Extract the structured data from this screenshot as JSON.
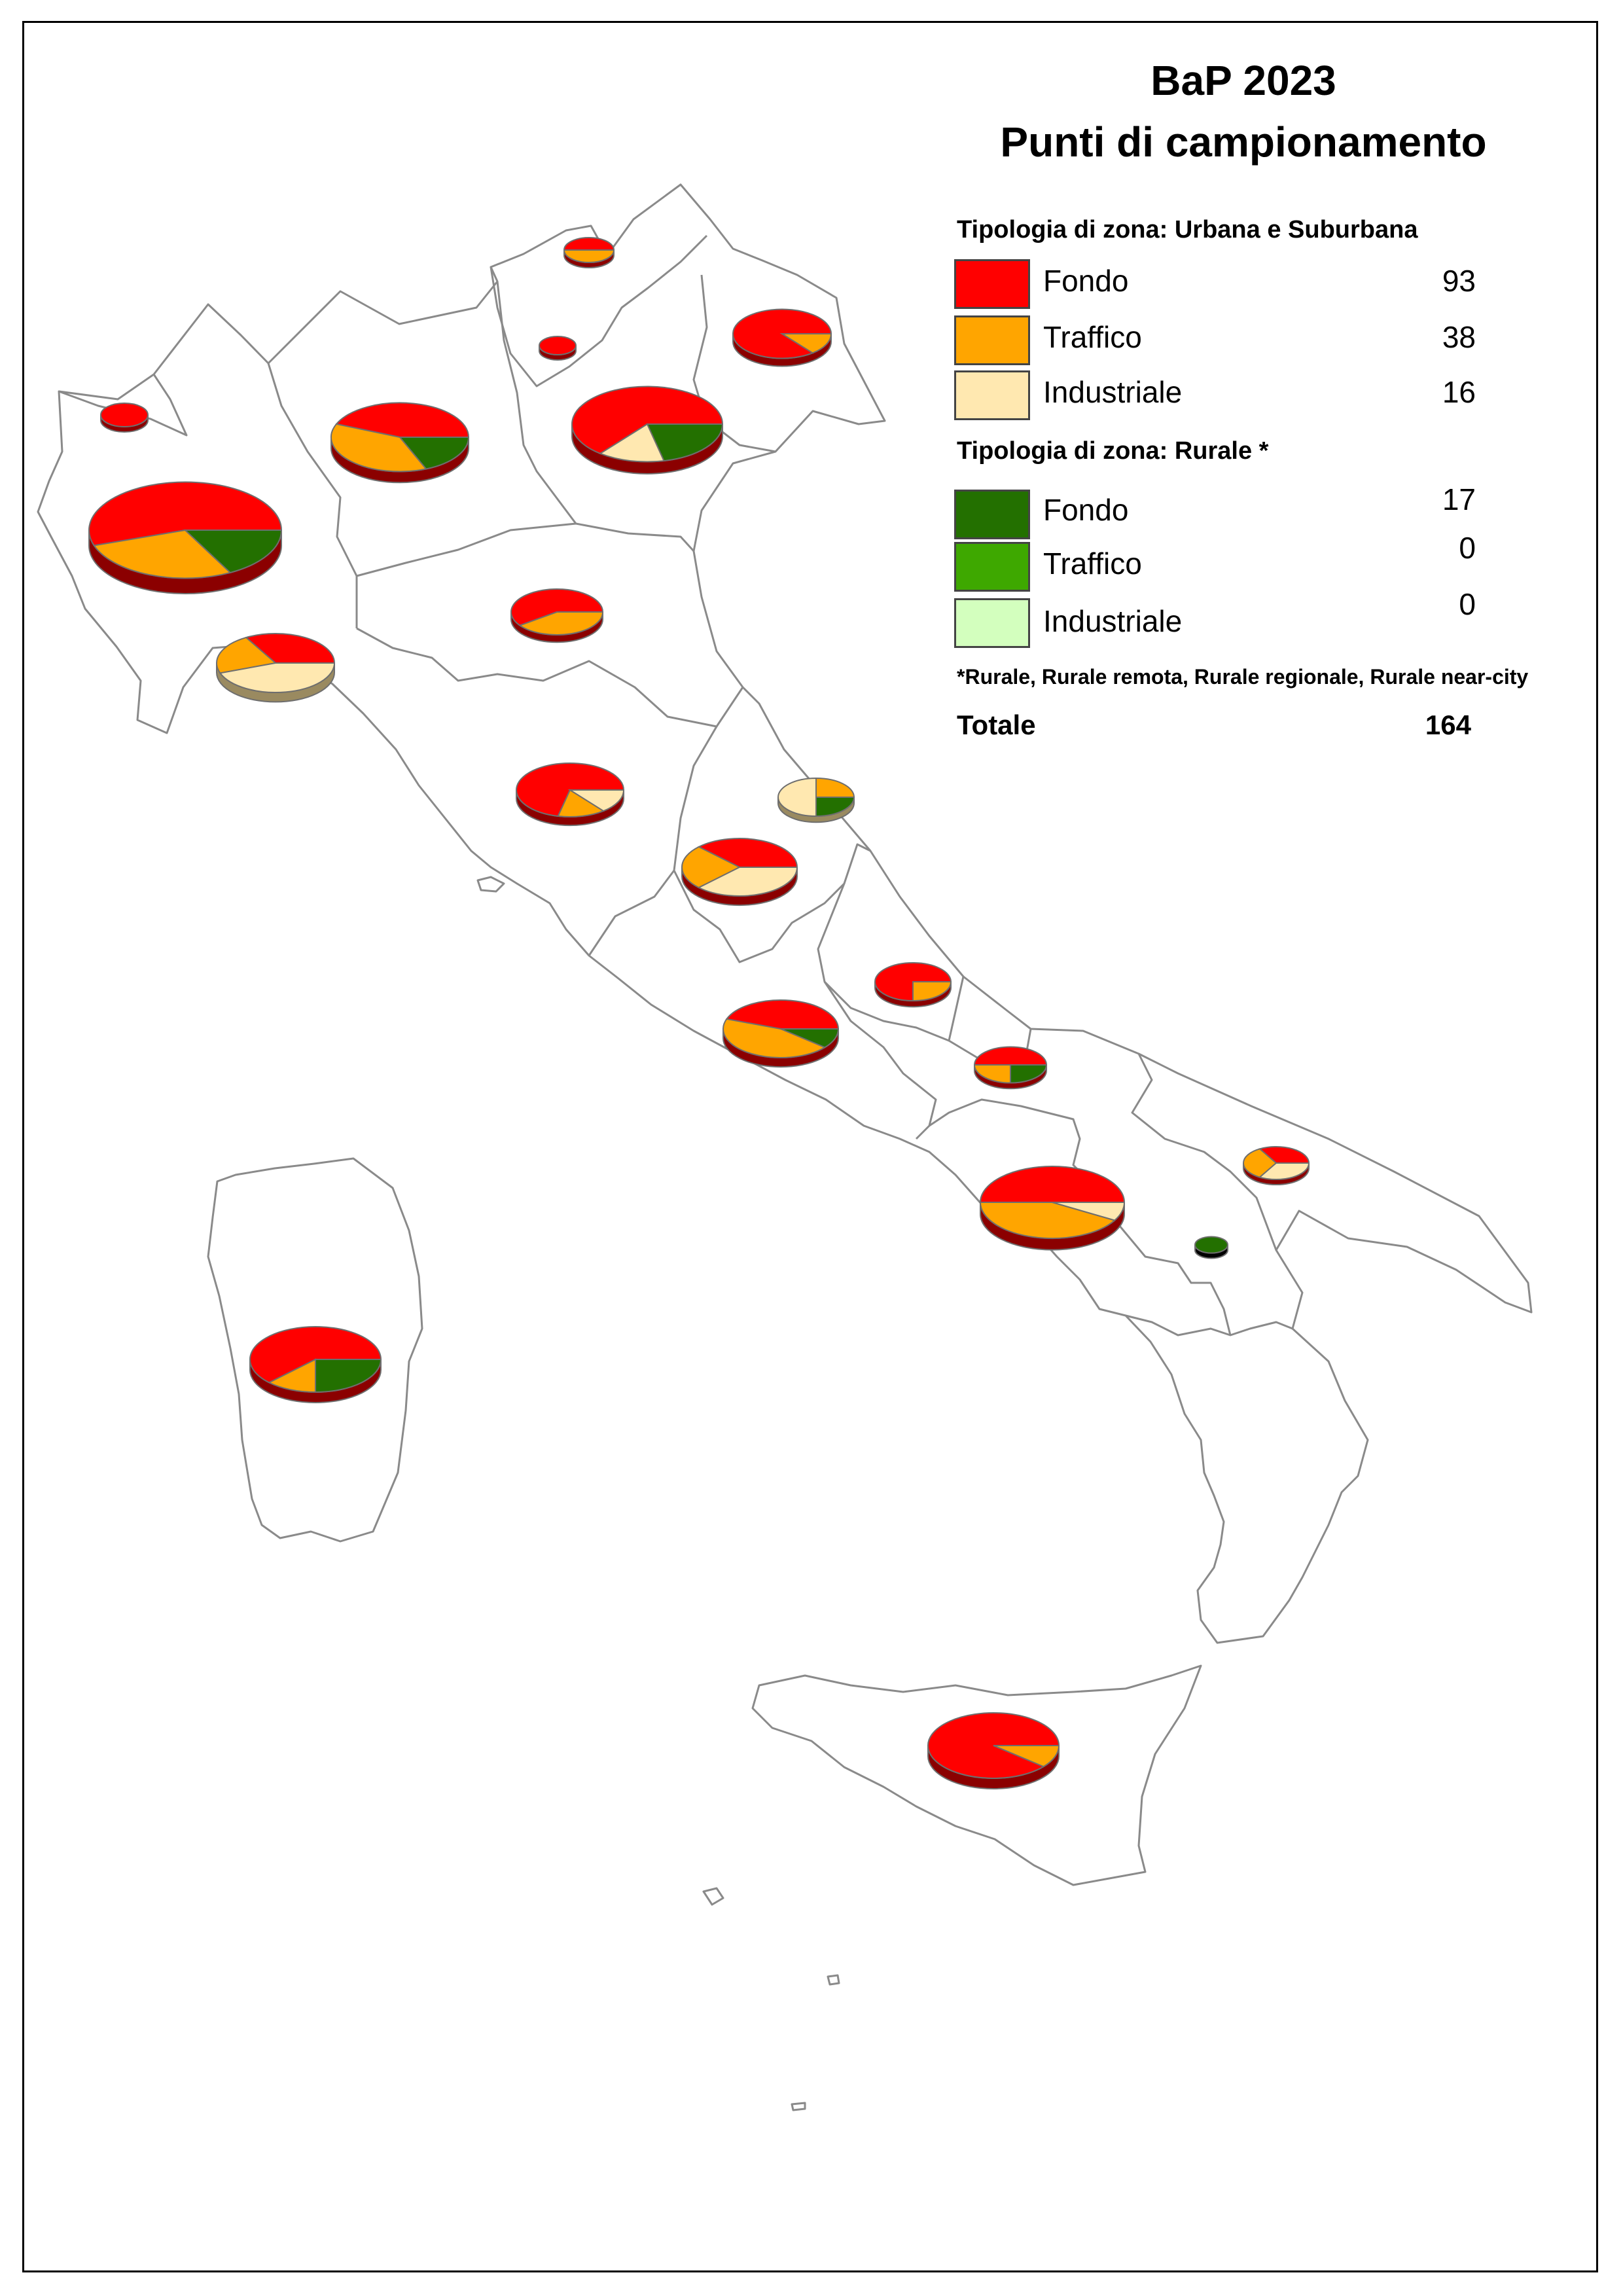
{
  "title_line1": "BaP 2023",
  "title_line2": "Punti di campionamento",
  "legend": {
    "urban_heading": "Tipologia di zona: Urbana e Suburbana",
    "urban_items": [
      {
        "label": "Fondo",
        "count": "93",
        "color": "#ff0000"
      },
      {
        "label": "Traffico",
        "count": "38",
        "color": "#ffa500"
      },
      {
        "label": "Industriale",
        "count": "16",
        "color": "#ffe8b0"
      }
    ],
    "rural_heading": "Tipologia di zona: Rurale *",
    "rural_items": [
      {
        "label": "Fondo",
        "count": "17",
        "color": "#237000"
      },
      {
        "label": "Traffico",
        "count": "0",
        "color": "#3ea800"
      },
      {
        "label": "Industriale",
        "count": "0",
        "color": "#d3ffbe"
      }
    ],
    "note": "*Rurale, Rurale remota, Rurale regionale, Rurale near-city",
    "total_label": "Totale",
    "total_value": "164"
  },
  "pies": [
    {
      "region": "Valle d'Aosta",
      "urban_fondo": 1,
      "urban_traffico": 0,
      "urban_industriale": 0,
      "rurale_fondo": 0
    },
    {
      "region": "Piemonte",
      "urban_fondo": 16,
      "urban_traffico": 8,
      "urban_industriale": 0,
      "rurale_fondo": 5
    },
    {
      "region": "Lombardia",
      "urban_fondo": 7,
      "urban_traffico": 6,
      "urban_industriale": 0,
      "rurale_fondo": 3
    },
    {
      "region": "Alto Adige",
      "urban_fondo": 1,
      "urban_traffico": 1,
      "urban_industriale": 0,
      "rurale_fondo": 0
    },
    {
      "region": "Trentino",
      "urban_fondo": 1,
      "urban_traffico": 0,
      "urban_industriale": 0,
      "rurale_fondo": 0
    },
    {
      "region": "Veneto",
      "urban_fondo": 9,
      "urban_traffico": 0,
      "urban_industriale": 2,
      "rurale_fondo": 3
    },
    {
      "region": "Friuli Venezia Giulia",
      "urban_fondo": 6,
      "urban_traffico": 1,
      "urban_industriale": 0,
      "rurale_fondo": 0
    },
    {
      "region": "Liguria",
      "urban_fondo": 3,
      "urban_traffico": 2,
      "urban_industriale": 4,
      "rurale_fondo": 0
    },
    {
      "region": "Emilia-Romagna",
      "urban_fondo": 3,
      "urban_traffico": 2,
      "urban_industriale": 0,
      "rurale_fondo": 0
    },
    {
      "region": "Toscana",
      "urban_fondo": 5,
      "urban_traffico": 1,
      "urban_industriale": 1,
      "rurale_fondo": 0
    },
    {
      "region": "Marche",
      "urban_fondo": 0,
      "urban_traffico": 1,
      "urban_industriale": 2,
      "rurale_fondo": 1
    },
    {
      "region": "Umbria",
      "urban_fondo": 3,
      "urban_traffico": 2,
      "urban_industriale": 3,
      "rurale_fondo": 0
    },
    {
      "region": "Abruzzo",
      "urban_fondo": 3,
      "urban_traffico": 1,
      "urban_industriale": 0,
      "rurale_fondo": 0
    },
    {
      "region": "Lazio",
      "urban_fondo": 4,
      "urban_traffico": 4,
      "urban_industriale": 0,
      "rurale_fondo": 1
    },
    {
      "region": "Molise",
      "urban_fondo": 2,
      "urban_traffico": 1,
      "urban_industriale": 0,
      "rurale_fondo": 1
    },
    {
      "region": "Campania",
      "urban_fondo": 6,
      "urban_traffico": 5,
      "urban_industriale": 1,
      "rurale_fondo": 0
    },
    {
      "region": "Puglia",
      "urban_fondo": 1,
      "urban_traffico": 1,
      "urban_industriale": 1,
      "rurale_fondo": 0
    },
    {
      "region": "Basilicata",
      "urban_fondo": 0,
      "urban_traffico": 0,
      "urban_industriale": 0,
      "rurale_fondo": 1
    },
    {
      "region": "Sicilia",
      "urban_fondo": 8,
      "urban_traffico": 1,
      "urban_industriale": 0,
      "rurale_fondo": 0
    },
    {
      "region": "Sardegna",
      "urban_fondo": 5,
      "urban_traffico": 1,
      "urban_industriale": 0,
      "rurale_fondo": 2
    }
  ]
}
